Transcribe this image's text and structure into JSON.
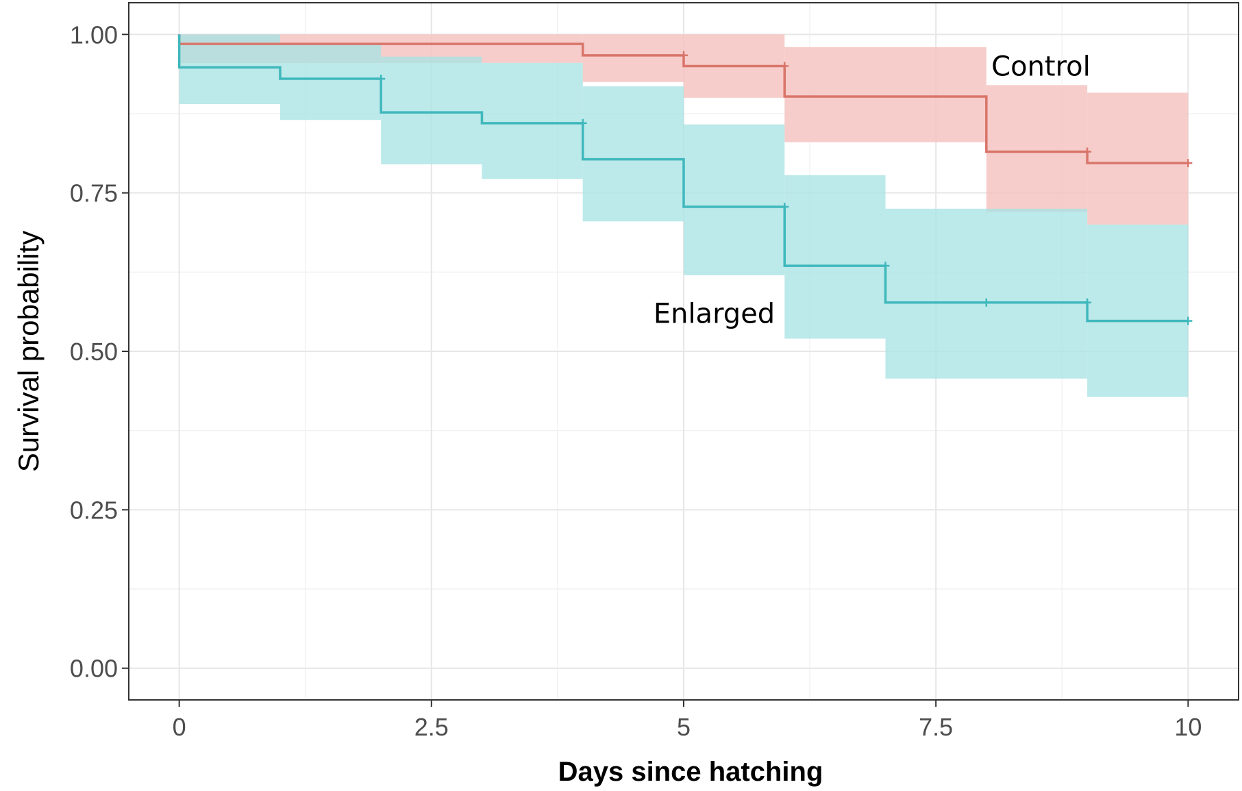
{
  "chart_data": {
    "type": "line",
    "subtype": "step",
    "xlabel": "Days since hatching",
    "ylabel": "Survival probability",
    "xlim": [
      -0.5,
      10.5
    ],
    "ylim": [
      -0.05,
      1.05
    ],
    "x_ticks": [
      0,
      2.5,
      5,
      7.5,
      10
    ],
    "x_tick_labels": [
      "0",
      "2.5",
      "5",
      "7.5",
      "10"
    ],
    "y_ticks": [
      0,
      0.25,
      0.5,
      0.75,
      1.0
    ],
    "y_tick_labels": [
      "0.00",
      "0.25",
      "0.50",
      "0.75",
      "1.00"
    ],
    "grid": true,
    "legend": "none",
    "series": [
      {
        "name": "Control",
        "color": "#d9756a",
        "ci_color": "#f4c2be",
        "steps": [
          {
            "x0": 0,
            "x1": 4,
            "y": 0.985,
            "lo": 0.955,
            "hi": 1.0
          },
          {
            "x0": 4,
            "x1": 5,
            "y": 0.967,
            "lo": 0.925,
            "hi": 1.0
          },
          {
            "x0": 5,
            "x1": 6,
            "y": 0.95,
            "lo": 0.9,
            "hi": 1.0
          },
          {
            "x0": 6,
            "x1": 8,
            "y": 0.902,
            "lo": 0.83,
            "hi": 0.98
          },
          {
            "x0": 8,
            "x1": 9,
            "y": 0.815,
            "lo": 0.72,
            "hi": 0.92
          },
          {
            "x0": 9,
            "x1": 10,
            "y": 0.797,
            "lo": 0.7,
            "hi": 0.908
          }
        ],
        "censor_x": [
          5,
          6,
          9,
          10
        ]
      },
      {
        "name": "Enlarged",
        "color": "#3fb8bc",
        "ci_color": "#a9e3e4",
        "steps": [
          {
            "x0": 0,
            "x1": 1,
            "y": 0.948,
            "lo": 0.89,
            "hi": 1.0
          },
          {
            "x0": 1,
            "x1": 2,
            "y": 0.93,
            "lo": 0.865,
            "hi": 0.985
          },
          {
            "x0": 2,
            "x1": 3,
            "y": 0.877,
            "lo": 0.795,
            "hi": 0.965
          },
          {
            "x0": 3,
            "x1": 4,
            "y": 0.86,
            "lo": 0.772,
            "hi": 0.955
          },
          {
            "x0": 4,
            "x1": 5,
            "y": 0.803,
            "lo": 0.705,
            "hi": 0.918
          },
          {
            "x0": 5,
            "x1": 6,
            "y": 0.728,
            "lo": 0.62,
            "hi": 0.858
          },
          {
            "x0": 6,
            "x1": 7,
            "y": 0.635,
            "lo": 0.52,
            "hi": 0.778
          },
          {
            "x0": 7,
            "x1": 9,
            "y": 0.577,
            "lo": 0.457,
            "hi": 0.725
          },
          {
            "x0": 9,
            "x1": 10,
            "y": 0.548,
            "lo": 0.428,
            "hi": 0.7
          }
        ],
        "censor_x": [
          2,
          4,
          6,
          7,
          8,
          9,
          10
        ]
      }
    ]
  }
}
